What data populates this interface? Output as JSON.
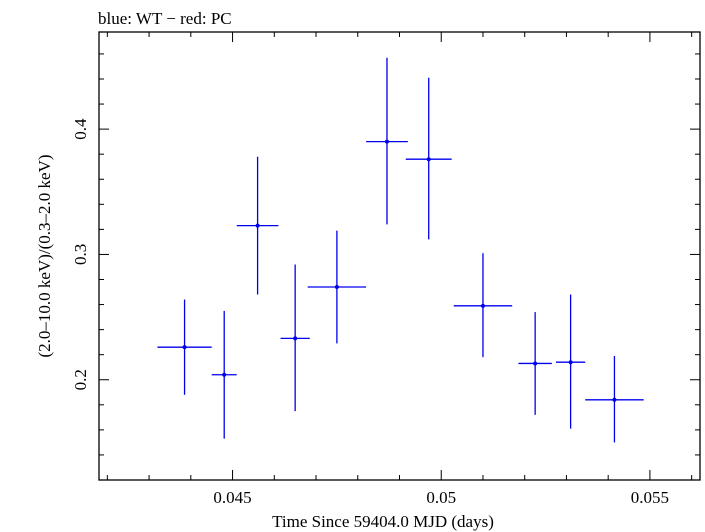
{
  "chart_data": {
    "type": "scatter",
    "title": "blue: WT − red: PC",
    "xlabel": "Time Since 59404.0 MJD (days)",
    "ylabel": "(2.0–10.0 keV)/(0.3–2.0 keV)",
    "xlim": [
      0.0418,
      0.0562
    ],
    "ylim": [
      0.12,
      0.4775
    ],
    "xticks": [
      {
        "value": 0.045,
        "label": "0.045"
      },
      {
        "value": 0.05,
        "label": "0.05"
      },
      {
        "value": 0.055,
        "label": "0.055"
      }
    ],
    "yticks": [
      {
        "value": 0.2,
        "label": "0.2"
      },
      {
        "value": 0.3,
        "label": "0.3"
      },
      {
        "value": 0.4,
        "label": "0.4"
      }
    ],
    "grid": false,
    "series": [
      {
        "color": "#0000ee",
        "points": [
          {
            "x": 0.04385,
            "xerr": 0.00065,
            "y": 0.226,
            "ylow": 0.188,
            "yhigh": 0.264
          },
          {
            "x": 0.0448,
            "xerr": 0.0003,
            "y": 0.204,
            "ylow": 0.153,
            "yhigh": 0.255
          },
          {
            "x": 0.0456,
            "xerr": 0.0005,
            "y": 0.323,
            "ylow": 0.268,
            "yhigh": 0.378
          },
          {
            "x": 0.0465,
            "xerr": 0.00035,
            "y": 0.233,
            "ylow": 0.175,
            "yhigh": 0.292
          },
          {
            "x": 0.0475,
            "xerr": 0.0007,
            "y": 0.274,
            "ylow": 0.229,
            "yhigh": 0.319
          },
          {
            "x": 0.0487,
            "xerr": 0.0005,
            "y": 0.39,
            "ylow": 0.324,
            "yhigh": 0.457
          },
          {
            "x": 0.0497,
            "xerr": 0.00055,
            "y": 0.376,
            "ylow": 0.312,
            "yhigh": 0.441
          },
          {
            "x": 0.051,
            "xerr": 0.0007,
            "y": 0.259,
            "ylow": 0.218,
            "yhigh": 0.301
          },
          {
            "x": 0.05225,
            "xerr": 0.0004,
            "y": 0.213,
            "ylow": 0.172,
            "yhigh": 0.254
          },
          {
            "x": 0.0531,
            "xerr": 0.00035,
            "y": 0.214,
            "ylow": 0.161,
            "yhigh": 0.268
          },
          {
            "x": 0.05415,
            "xerr": 0.0007,
            "y": 0.184,
            "ylow": 0.15,
            "yhigh": 0.219
          }
        ]
      }
    ]
  }
}
